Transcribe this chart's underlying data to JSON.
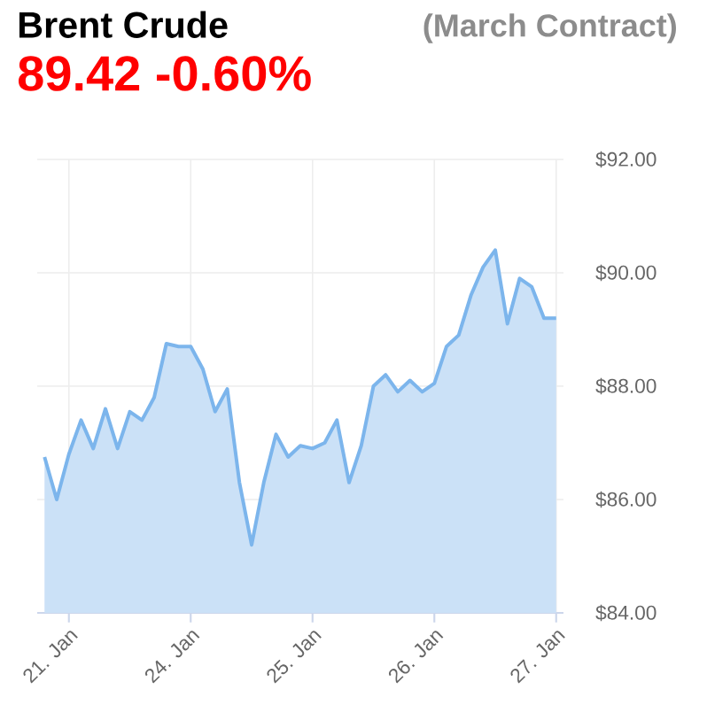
{
  "chart_data": {
    "type": "area",
    "title": "Brent Crude",
    "subtitle": "89.42 -0.60%",
    "annotations": [
      "(March Contract)"
    ],
    "categories": [
      null,
      null,
      "21. Jan",
      null,
      null,
      null,
      null,
      null,
      null,
      null,
      null,
      null,
      "24. Jan",
      null,
      null,
      null,
      null,
      null,
      null,
      null,
      null,
      null,
      "25. Jan",
      null,
      null,
      null,
      null,
      null,
      null,
      null,
      null,
      null,
      "26. Jan",
      null,
      null,
      null,
      null,
      null,
      null,
      null,
      null,
      null,
      "27. Jan"
    ],
    "values": [
      86.75,
      86.0,
      86.8,
      87.4,
      86.9,
      87.6,
      86.9,
      87.55,
      87.4,
      87.8,
      88.75,
      88.7,
      88.7,
      88.3,
      87.55,
      87.95,
      86.3,
      85.2,
      86.3,
      87.15,
      86.75,
      86.95,
      86.9,
      87.0,
      87.4,
      86.3,
      86.95,
      88.0,
      88.2,
      87.9,
      88.1,
      87.9,
      88.05,
      88.7,
      88.9,
      89.6,
      90.1,
      90.4,
      89.1,
      89.9,
      89.75,
      89.2,
      89.2
    ],
    "color": "#7cb5ec",
    "ylim": [
      84,
      92
    ],
    "yticks": [
      {
        "value": 84,
        "label": "$84.00"
      },
      {
        "value": 86,
        "label": "$86.00"
      },
      {
        "value": 88,
        "label": "$88.00"
      },
      {
        "value": 90,
        "label": "$90.00"
      },
      {
        "value": 92,
        "label": "$92.00"
      }
    ],
    "grid": true
  }
}
